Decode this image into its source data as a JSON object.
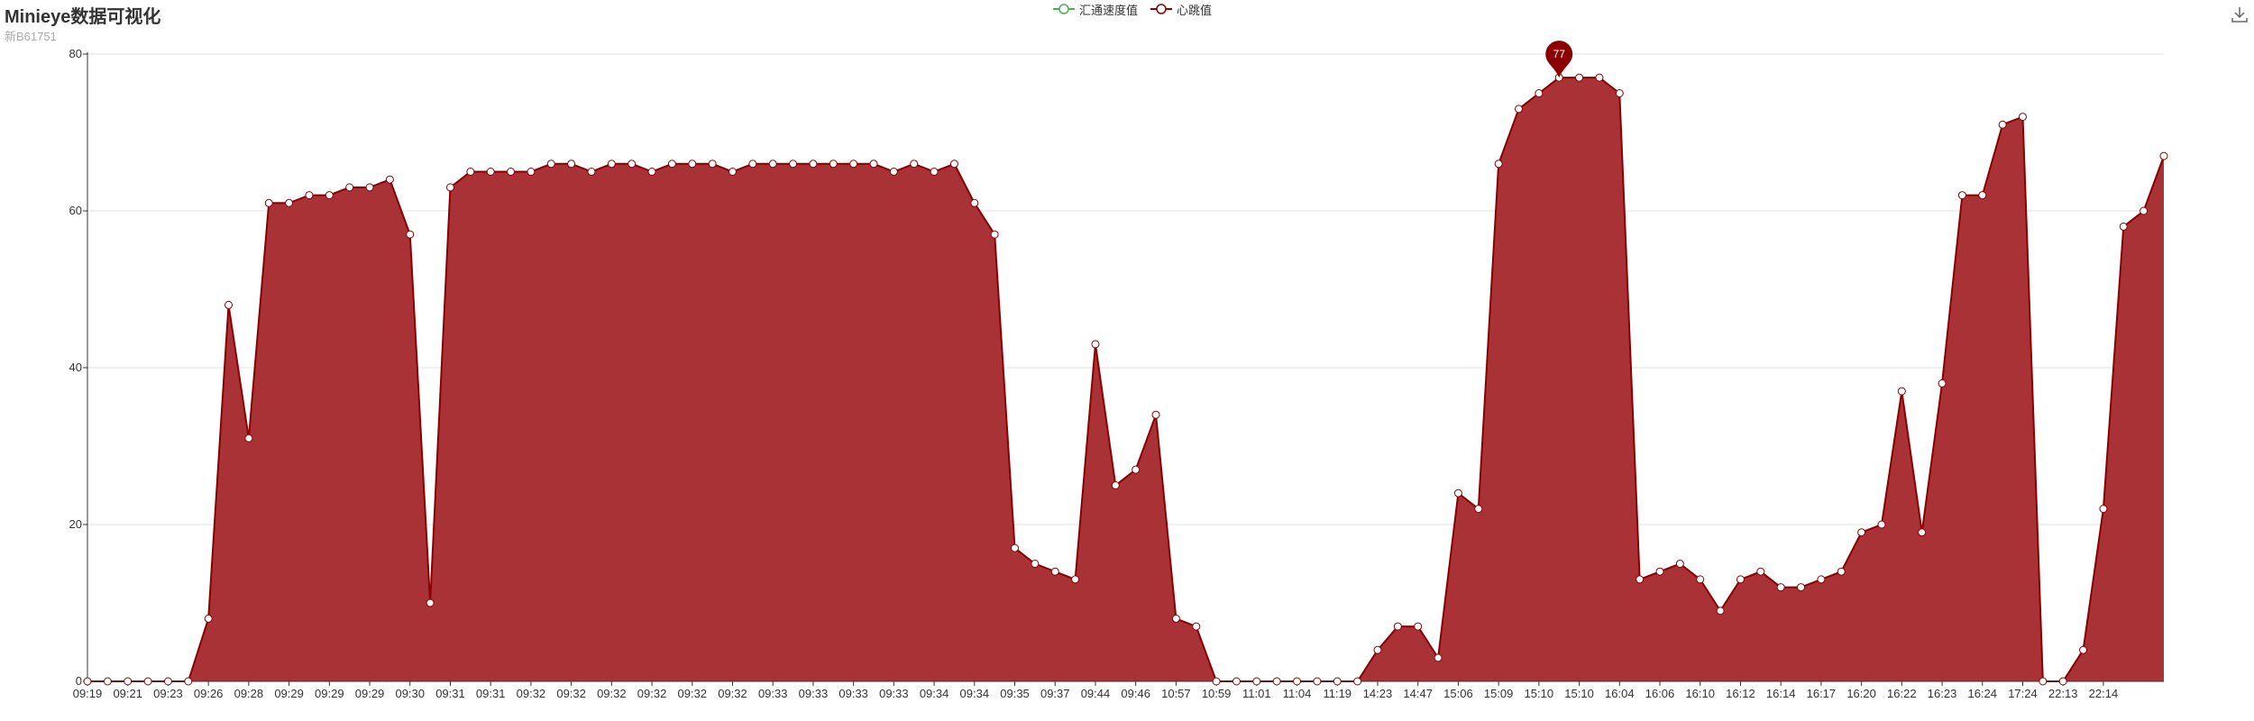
{
  "chart_data": {
    "type": "area",
    "title": "Minieye数据可视化",
    "subtitle": "新B61751",
    "legend": {
      "placement": "top-center",
      "items": [
        {
          "label": "汇通速度值",
          "color": "#4caf50"
        },
        {
          "label": "心跳值",
          "color": "#8b0000"
        }
      ]
    },
    "series": [
      {
        "name": "心跳值",
        "color": "#8b0000",
        "fill": "#a83236",
        "values": [
          0,
          0,
          0,
          0,
          0,
          0,
          8,
          48,
          31,
          61,
          61,
          62,
          62,
          63,
          63,
          64,
          57,
          10,
          63,
          65,
          65,
          65,
          65,
          66,
          66,
          65,
          66,
          66,
          65,
          66,
          66,
          66,
          65,
          66,
          66,
          66,
          66,
          66,
          66,
          66,
          65,
          66,
          65,
          66,
          61,
          57,
          17,
          15,
          14,
          13,
          43,
          25,
          27,
          34,
          8,
          7,
          0,
          0,
          0,
          0,
          0,
          0,
          0,
          0,
          4,
          7,
          7,
          3,
          24,
          22,
          66,
          73,
          75,
          77,
          77,
          77,
          75,
          13,
          14,
          15,
          13,
          9,
          13,
          14,
          12,
          12,
          13,
          14,
          19,
          20,
          37,
          19,
          38,
          62,
          62,
          71,
          72,
          0,
          0,
          4,
          22,
          58,
          60,
          67
        ]
      }
    ],
    "x_tick_labels": [
      "09:19",
      "09:21",
      "09:23",
      "09:26",
      "09:28",
      "09:29",
      "09:29",
      "09:29",
      "09:30",
      "09:31",
      "09:31",
      "09:32",
      "09:32",
      "09:32",
      "09:32",
      "09:32",
      "09:32",
      "09:33",
      "09:33",
      "09:33",
      "09:33",
      "09:34",
      "09:34",
      "09:35",
      "09:37",
      "09:44",
      "09:46",
      "10:57",
      "10:59",
      "11:01",
      "11:04",
      "11:19",
      "14:23",
      "14:47",
      "15:06",
      "15:09",
      "15:10",
      "15:10",
      "16:04",
      "16:06",
      "16:10",
      "16:12",
      "16:14",
      "16:17",
      "16:20",
      "16:22",
      "16:23",
      "16:24",
      "17:24",
      "22:13",
      "22:14"
    ],
    "x_tick_every": 2,
    "ylim": [
      0,
      80
    ],
    "y_ticks": [
      0,
      20,
      40,
      60,
      80
    ],
    "grid": true,
    "markpoint": {
      "label": "77",
      "value": 77,
      "index": 73
    }
  }
}
